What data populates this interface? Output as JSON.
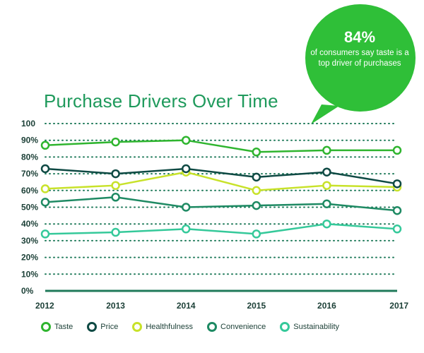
{
  "chart_data": {
    "type": "line",
    "title": "Purchase Drivers Over Time",
    "xlabel": "",
    "ylabel": "",
    "ylim": [
      0,
      100
    ],
    "yticks": [
      "100",
      "90%",
      "80%",
      "70%",
      "60%",
      "50%",
      "40%",
      "30%",
      "20%",
      "10%",
      "0%"
    ],
    "x": [
      "2012",
      "2013",
      "2014",
      "2015",
      "2016",
      "2017"
    ],
    "grid": true,
    "legend": "bottom",
    "series": [
      {
        "name": "Taste",
        "color": "#2fb52f",
        "values": [
          87,
          89,
          90,
          83,
          84,
          84
        ]
      },
      {
        "name": "Price",
        "color": "#0f4a44",
        "values": [
          73,
          70,
          73,
          68,
          71,
          64
        ]
      },
      {
        "name": "Healthfulness",
        "color": "#c8e22a",
        "values": [
          61,
          63,
          71,
          60,
          63,
          62
        ]
      },
      {
        "name": "Convenience",
        "color": "#1e8a63",
        "values": [
          53,
          56,
          50,
          51,
          52,
          48
        ]
      },
      {
        "name": "Sustainability",
        "color": "#35c99a",
        "values": [
          34,
          35,
          37,
          34,
          40,
          37
        ]
      }
    ]
  },
  "callout": {
    "stat": "84%",
    "caption": "of consumers say taste is a top driver of purchases",
    "color": "#2fbf38"
  }
}
